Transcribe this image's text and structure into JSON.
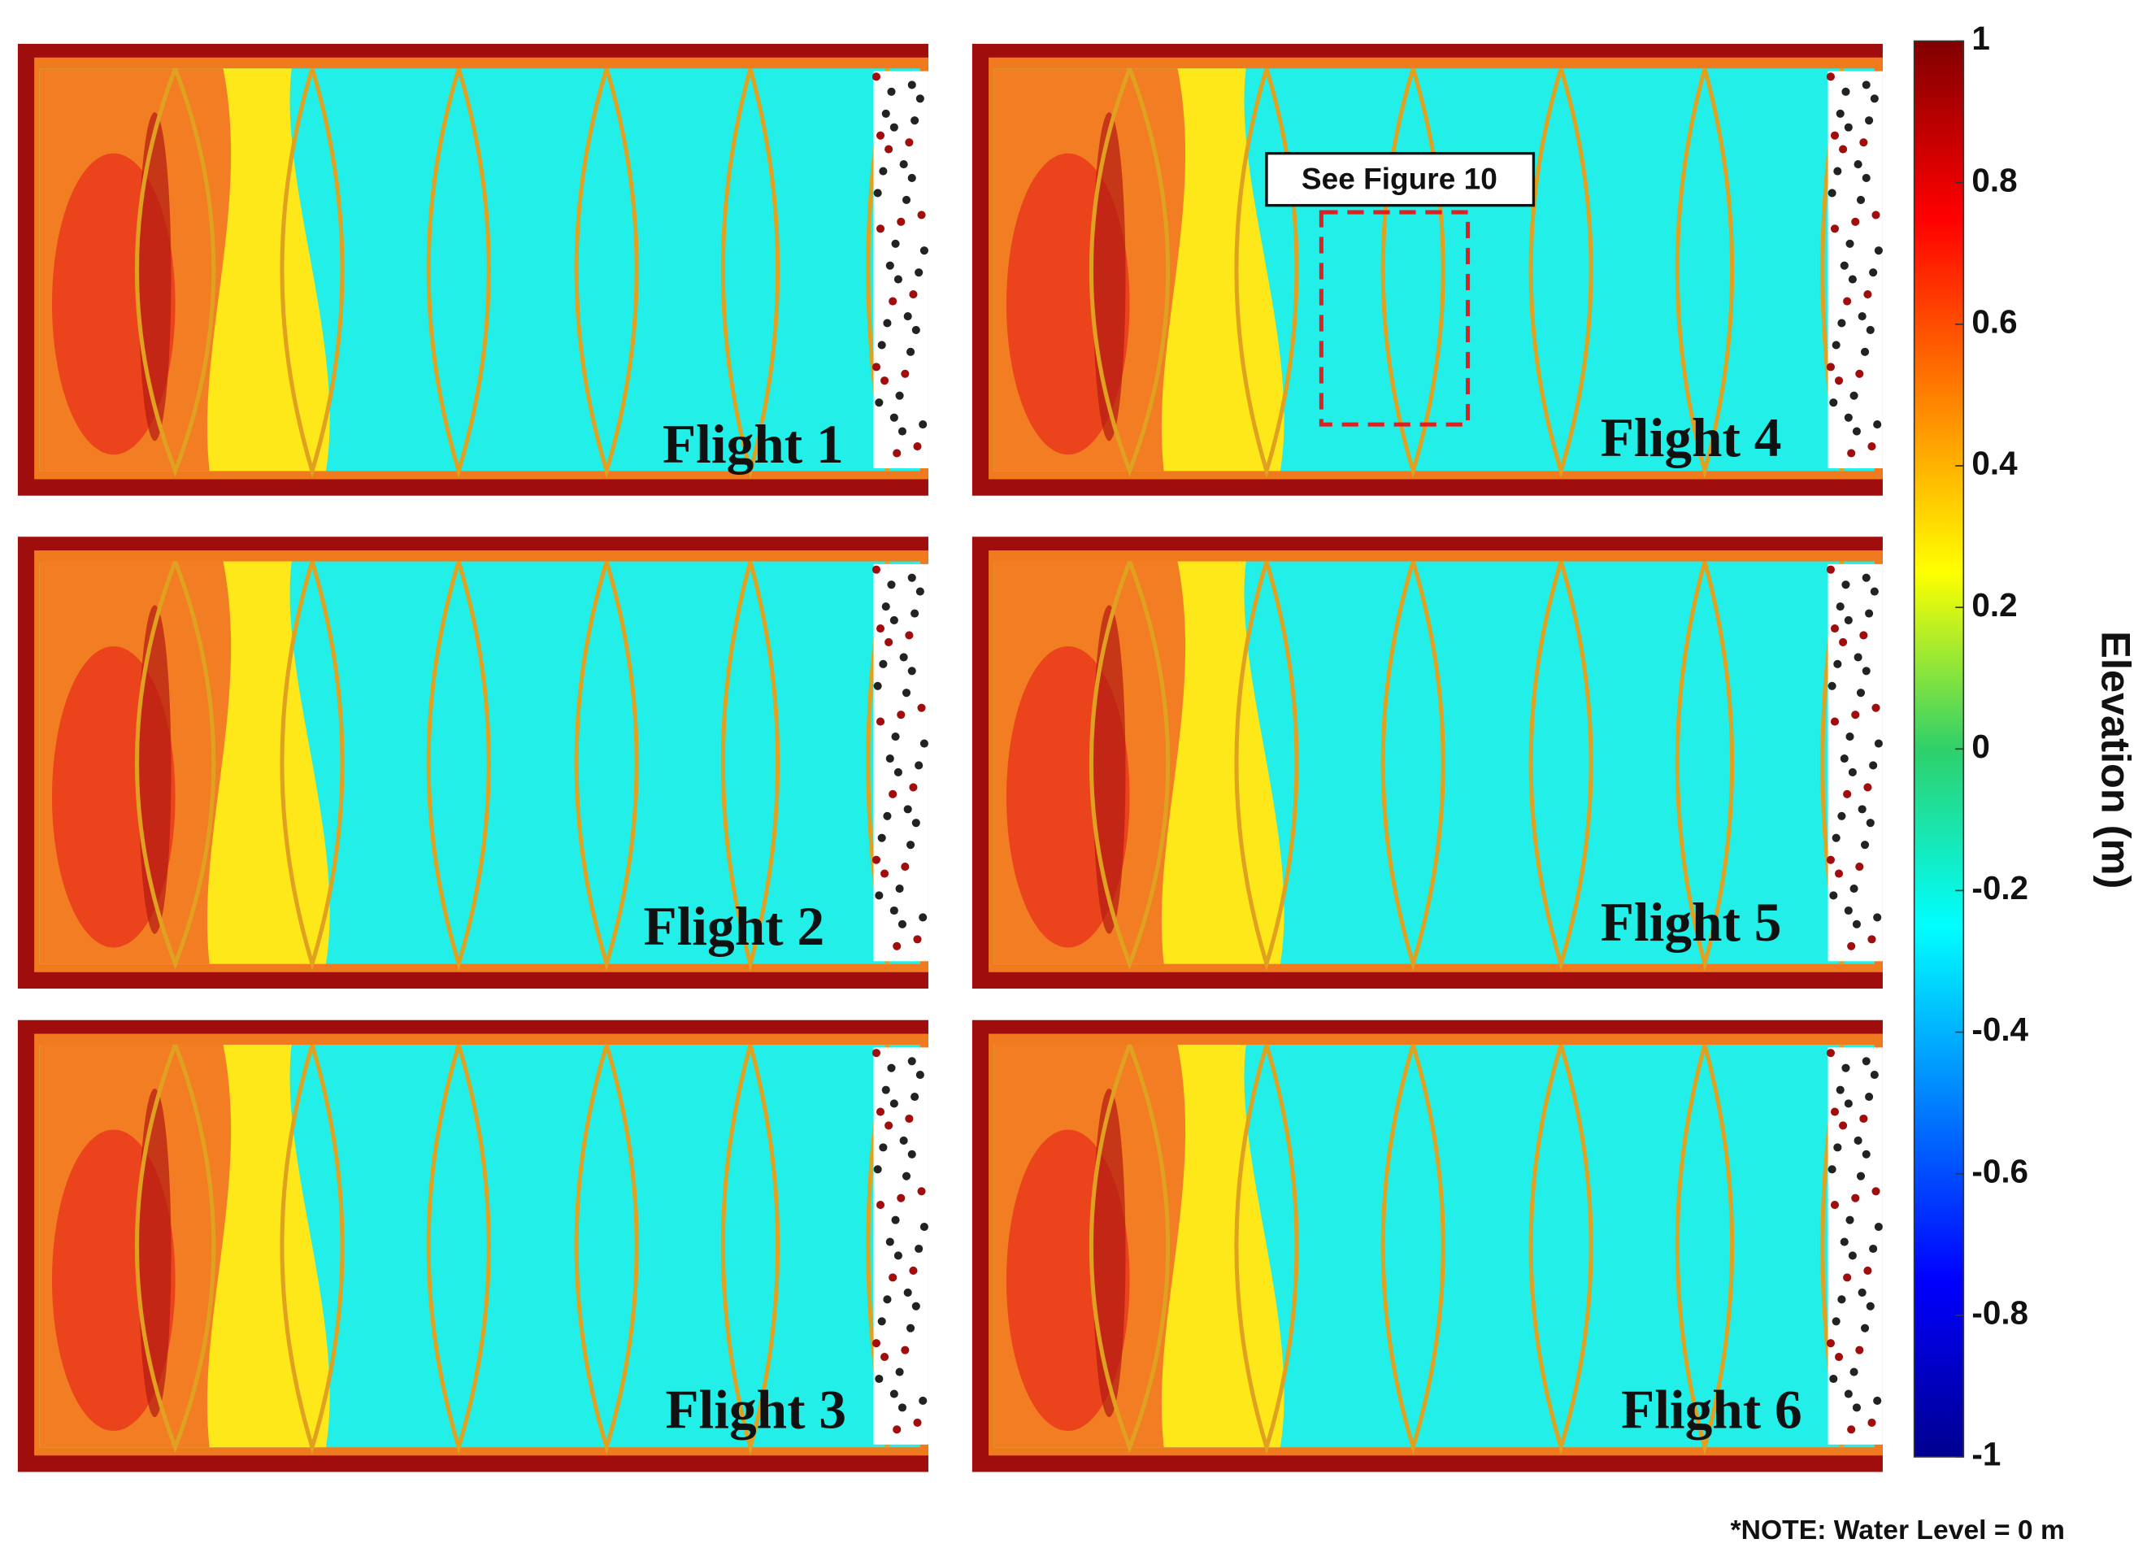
{
  "chart_data": {
    "type": "colorbar-figure",
    "panels": [
      {
        "label": "Flight 1"
      },
      {
        "label": "Flight 2"
      },
      {
        "label": "Flight 3"
      },
      {
        "label": "Flight 4"
      },
      {
        "label": "Flight 5"
      },
      {
        "label": "Flight 6"
      }
    ],
    "annotation": "See Figure 10",
    "colorbar": {
      "label": "Elevation (m)",
      "ylim": [
        -1,
        1
      ],
      "yticks": [
        1,
        0.8,
        0.6,
        0.4,
        0.2,
        0,
        -0.2,
        -0.4,
        -0.6,
        -0.8,
        -1
      ]
    },
    "note": "*NOTE: Water Level = 0 m"
  }
}
